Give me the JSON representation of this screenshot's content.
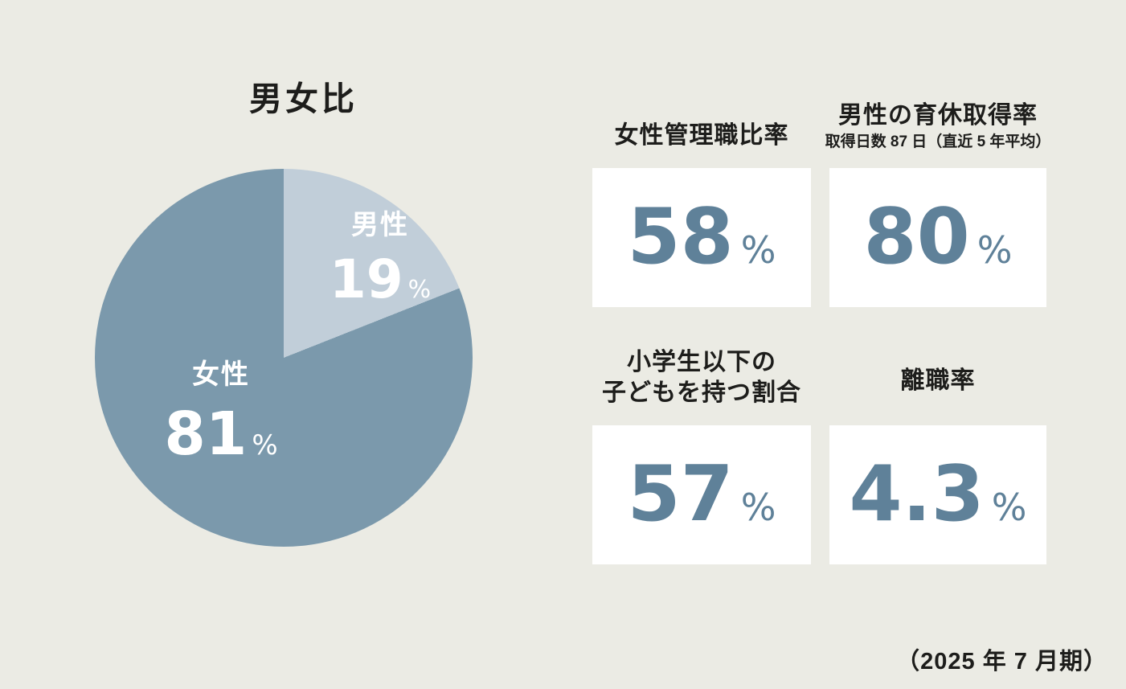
{
  "page": {
    "background_color": "#ebebe4",
    "footer_note": "（2025 年 7 月期）"
  },
  "chart_data": {
    "type": "pie",
    "title": "男女比",
    "start_angle_deg": 0,
    "direction": "clockwise",
    "legend_position": "inside",
    "slices": [
      {
        "label": "男性",
        "value": 19,
        "unit": "%",
        "color": "#c1ced9"
      },
      {
        "label": "女性",
        "value": 81,
        "unit": "%",
        "color": "#7b99ac"
      }
    ],
    "label_text_color": "#ffffff"
  },
  "stats": [
    {
      "title": "女性管理職比率",
      "subtitle": "",
      "value": "58",
      "unit": "%"
    },
    {
      "title": "男性の育休取得率",
      "subtitle": "取得日数 87 日（直近 5 年平均）",
      "value": "80",
      "unit": "%"
    },
    {
      "title": "小学生以下の\n子どもを持つ割合",
      "subtitle": "",
      "value": "57",
      "unit": "%"
    },
    {
      "title": "離職率",
      "subtitle": "",
      "value": "4.3",
      "unit": "%"
    }
  ],
  "colors": {
    "stat_value": "#5f8199",
    "card_background": "#ffffff",
    "heading_text": "#1d1d1b"
  }
}
